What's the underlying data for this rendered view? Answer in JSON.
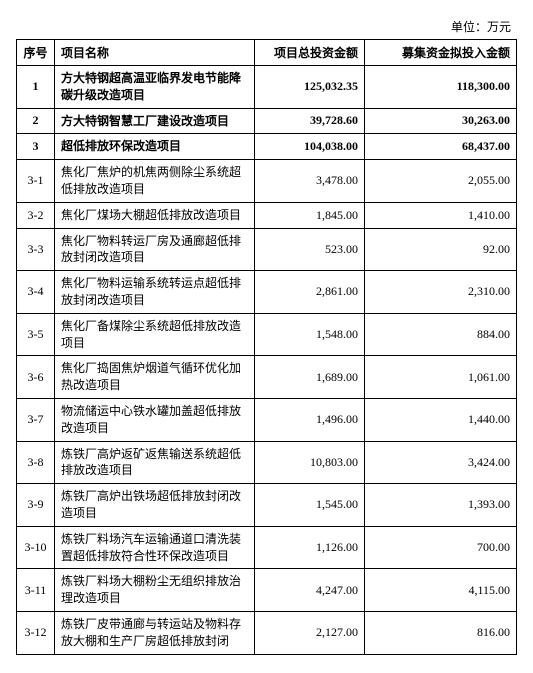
{
  "unit_label": "单位：万元",
  "headers": {
    "seq": "序号",
    "name": "项目名称",
    "total": "项目总投资金额",
    "invest": "募集资金拟投入金额"
  },
  "rows": [
    {
      "seq": "1",
      "name": "方大特钢超高温亚临界发电节能降碳升级改造项目",
      "total": "125,032.35",
      "invest": "118,300.00",
      "bold": true
    },
    {
      "seq": "2",
      "name": "方大特钢智慧工厂建设改造项目",
      "total": "39,728.60",
      "invest": "30,263.00",
      "bold": true
    },
    {
      "seq": "3",
      "name": "超低排放环保改造项目",
      "total": "104,038.00",
      "invest": "68,437.00",
      "bold": true
    },
    {
      "seq": "3-1",
      "name": "焦化厂焦炉的机焦两侧除尘系统超低排放改造项目",
      "total": "3,478.00",
      "invest": "2,055.00",
      "bold": false
    },
    {
      "seq": "3-2",
      "name": "焦化厂煤场大棚超低排放改造项目",
      "total": "1,845.00",
      "invest": "1,410.00",
      "bold": false
    },
    {
      "seq": "3-3",
      "name": "焦化厂物料转运厂房及通廊超低排放封闭改造项目",
      "total": "523.00",
      "invest": "92.00",
      "bold": false
    },
    {
      "seq": "3-4",
      "name": "焦化厂物料运输系统转运点超低排放封闭改造项目",
      "total": "2,861.00",
      "invest": "2,310.00",
      "bold": false
    },
    {
      "seq": "3-5",
      "name": "焦化厂备煤除尘系统超低排放改造项目",
      "total": "1,548.00",
      "invest": "884.00",
      "bold": false
    },
    {
      "seq": "3-6",
      "name": "焦化厂捣固焦炉烟道气循环优化加热改造项目",
      "total": "1,689.00",
      "invest": "1,061.00",
      "bold": false
    },
    {
      "seq": "3-7",
      "name": "物流储运中心铁水罐加盖超低排放改造项目",
      "total": "1,496.00",
      "invest": "1,440.00",
      "bold": false
    },
    {
      "seq": "3-8",
      "name": "炼铁厂高炉返矿返焦输送系统超低排放改造项目",
      "total": "10,803.00",
      "invest": "3,424.00",
      "bold": false
    },
    {
      "seq": "3-9",
      "name": "炼铁厂高炉出铁场超低排放封闭改造项目",
      "total": "1,545.00",
      "invest": "1,393.00",
      "bold": false
    },
    {
      "seq": "3-10",
      "name": "炼铁厂料场汽车运输通道口清洗装置超低排放符合性环保改造项目",
      "total": "1,126.00",
      "invest": "700.00",
      "bold": false
    },
    {
      "seq": "3-11",
      "name": "炼铁厂料场大棚粉尘无组织排放治理改造项目",
      "total": "4,247.00",
      "invest": "4,115.00",
      "bold": false
    },
    {
      "seq": "3-12",
      "name": "炼铁厂皮带通廊与转运站及物料存放大棚和生产厂房超低排放封闭",
      "total": "2,127.00",
      "invest": "816.00",
      "bold": false
    }
  ]
}
